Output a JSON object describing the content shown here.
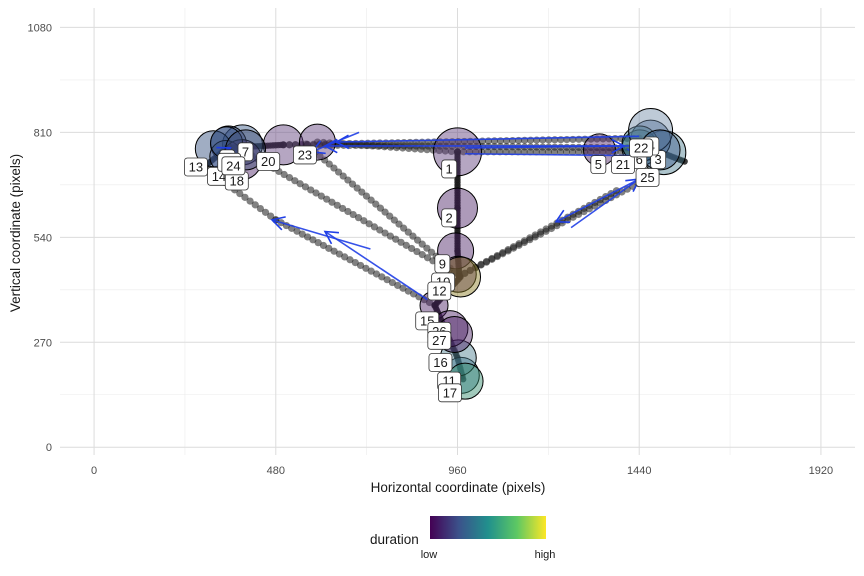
{
  "chart_data": {
    "type": "scatter",
    "xlabel": "Horizontal coordinate (pixels)",
    "ylabel": "Vertical coordinate (pixels)",
    "x_ticks": [
      "0",
      "480",
      "960",
      "1440",
      "1920"
    ],
    "y_ticks": [
      "0",
      "270",
      "540",
      "810",
      "1080"
    ],
    "xlim": [
      -90,
      2010
    ],
    "ylim": [
      -20,
      1130
    ],
    "grid": true,
    "legend": {
      "title": "duration",
      "low_label": "low",
      "high_label": "high",
      "gradient": [
        "#440154",
        "#3b528b",
        "#21908d",
        "#5dc863",
        "#fde725"
      ],
      "position": "bottom"
    },
    "fixations": [
      {
        "id": 1,
        "x": 960,
        "y": 760,
        "size": 24,
        "fill": "#5a3a78"
      },
      {
        "id": 2,
        "x": 960,
        "y": 615,
        "size": 20,
        "fill": "#4a1e63"
      },
      {
        "id": 3,
        "x": 1505,
        "y": 758,
        "size": 22,
        "fill": "#4a7d8e"
      },
      {
        "id": 4,
        "x": 1470,
        "y": 790,
        "size": 20,
        "fill": "#3a5a8a"
      },
      {
        "id": 5,
        "x": 1335,
        "y": 765,
        "size": 16,
        "fill": "#4a1e63"
      },
      {
        "id": 6,
        "x": 1442,
        "y": 770,
        "size": 18,
        "fill": "#2d6b7a"
      },
      {
        "id": 7,
        "x": 392,
        "y": 778,
        "size": 20,
        "fill": "#3a5a8a"
      },
      {
        "id": 8,
        "x": 355,
        "y": 780,
        "size": 18,
        "fill": "#3b528b"
      },
      {
        "id": 9,
        "x": 955,
        "y": 505,
        "size": 18,
        "fill": "#4a1e63"
      },
      {
        "id": 10,
        "x": 962,
        "y": 445,
        "size": 18,
        "fill": "#4a1e63"
      },
      {
        "id": 11,
        "x": 970,
        "y": 185,
        "size": 18,
        "fill": "#3b7890"
      },
      {
        "id": 12,
        "x": 968,
        "y": 438,
        "size": 20,
        "fill": "#8a7a20"
      },
      {
        "id": 13,
        "x": 315,
        "y": 768,
        "size": 18,
        "fill": "#2d4a7a"
      },
      {
        "id": 14,
        "x": 348,
        "y": 748,
        "size": 16,
        "fill": "#3b528b"
      },
      {
        "id": 15,
        "x": 898,
        "y": 365,
        "size": 14,
        "fill": "#4a1e63"
      },
      {
        "id": 16,
        "x": 962,
        "y": 230,
        "size": 18,
        "fill": "#4a7d8e"
      },
      {
        "id": 17,
        "x": 980,
        "y": 170,
        "size": 18,
        "fill": "#2f8a6a"
      },
      {
        "id": 18,
        "x": 390,
        "y": 740,
        "size": 20,
        "fill": "#4a1e63"
      },
      {
        "id": 19,
        "x": 350,
        "y": 783,
        "size": 16,
        "fill": "#2d4a7a"
      },
      {
        "id": 20,
        "x": 500,
        "y": 778,
        "size": 20,
        "fill": "#5a3a78"
      },
      {
        "id": 21,
        "x": 1442,
        "y": 780,
        "size": 18,
        "fill": "#2d6b7a"
      },
      {
        "id": 22,
        "x": 1470,
        "y": 815,
        "size": 22,
        "fill": "#6e8aa6"
      },
      {
        "id": 23,
        "x": 590,
        "y": 785,
        "size": 18,
        "fill": "#5a3a78"
      },
      {
        "id": 24,
        "x": 400,
        "y": 765,
        "size": 20,
        "fill": "#3a4a70"
      },
      {
        "id": 25,
        "x": 1495,
        "y": 765,
        "size": 20,
        "fill": "#3a5a8a"
      },
      {
        "id": 26,
        "x": 940,
        "y": 305,
        "size": 18,
        "fill": "#4a1e63"
      },
      {
        "id": 27,
        "x": 952,
        "y": 290,
        "size": 18,
        "fill": "#4a1e63"
      }
    ],
    "label_positions": [
      {
        "id": 1,
        "x": 938,
        "y": 716
      },
      {
        "id": 2,
        "x": 938,
        "y": 590
      },
      {
        "id": 3,
        "x": 1490,
        "y": 740
      },
      {
        "id": 4,
        "x": 1472,
        "y": 775
      },
      {
        "id": 5,
        "x": 1332,
        "y": 727
      },
      {
        "id": 6,
        "x": 1440,
        "y": 740
      },
      {
        "id": 7,
        "x": 400,
        "y": 760
      },
      {
        "id": 8,
        "x": 352,
        "y": 742
      },
      {
        "id": 9,
        "x": 920,
        "y": 472
      },
      {
        "id": 10,
        "x": 922,
        "y": 425
      },
      {
        "id": 11,
        "x": 938,
        "y": 170
      },
      {
        "id": 12,
        "x": 912,
        "y": 402
      },
      {
        "id": 13,
        "x": 269,
        "y": 721
      },
      {
        "id": 14,
        "x": 330,
        "y": 697
      },
      {
        "id": 15,
        "x": 880,
        "y": 325
      },
      {
        "id": 16,
        "x": 915,
        "y": 218
      },
      {
        "id": 17,
        "x": 940,
        "y": 140
      },
      {
        "id": 18,
        "x": 377,
        "y": 685
      },
      {
        "id": 19,
        "x": 357,
        "y": 733
      },
      {
        "id": 20,
        "x": 460,
        "y": 735
      },
      {
        "id": 21,
        "x": 1397,
        "y": 727
      },
      {
        "id": 22,
        "x": 1445,
        "y": 770
      },
      {
        "id": 23,
        "x": 557,
        "y": 752
      },
      {
        "id": 24,
        "x": 368,
        "y": 724
      },
      {
        "id": 25,
        "x": 1462,
        "y": 694
      },
      {
        "id": 26,
        "x": 912,
        "y": 298
      },
      {
        "id": 27,
        "x": 912,
        "y": 275
      }
    ],
    "path_segments": [
      {
        "from": [
          960,
          760
        ],
        "to": [
          960,
          615
        ],
        "dense": true
      },
      {
        "from": [
          960,
          615
        ],
        "to": [
          960,
          505
        ],
        "dense": true
      },
      {
        "from": [
          960,
          505
        ],
        "to": [
          965,
          440
        ],
        "dense": true
      },
      {
        "from": [
          965,
          440
        ],
        "to": [
          1480,
          700
        ],
        "dense": false
      },
      {
        "from": [
          965,
          440
        ],
        "to": [
          1380,
          660
        ],
        "dense": false
      },
      {
        "from": [
          968,
          438
        ],
        "to": [
          900,
          365
        ],
        "dense": true
      },
      {
        "from": [
          900,
          365
        ],
        "to": [
          960,
          230
        ],
        "dense": true
      },
      {
        "from": [
          960,
          230
        ],
        "to": [
          975,
          175
        ],
        "dense": true
      },
      {
        "from": [
          965,
          440
        ],
        "to": [
          390,
          765
        ],
        "dense": false
      },
      {
        "from": [
          965,
          440
        ],
        "to": [
          560,
          780
        ],
        "dense": false
      },
      {
        "from": [
          900,
          365
        ],
        "to": [
          480,
          585
        ],
        "dense": false
      },
      {
        "from": [
          480,
          585
        ],
        "to": [
          290,
          720
        ],
        "dense": false
      },
      {
        "from": [
          290,
          720
        ],
        "to": [
          350,
          770
        ],
        "dense": true
      },
      {
        "from": [
          350,
          770
        ],
        "to": [
          500,
          778
        ],
        "dense": true
      },
      {
        "from": [
          500,
          778
        ],
        "to": [
          1440,
          795
        ],
        "dense": false
      },
      {
        "from": [
          500,
          778
        ],
        "to": [
          1440,
          770
        ],
        "dense": false
      },
      {
        "from": [
          1440,
          780
        ],
        "to": [
          1560,
          735
        ],
        "dense": true
      },
      {
        "from": [
          590,
          785
        ],
        "to": [
          960,
          760
        ],
        "dense": false
      },
      {
        "from": [
          960,
          760
        ],
        "to": [
          1440,
          760
        ],
        "dense": false
      }
    ],
    "arrows": [
      {
        "from": [
          700,
          810
        ],
        "to": [
          575,
          760
        ]
      },
      {
        "from": [
          1440,
          800
        ],
        "to": [
          640,
          785
        ]
      },
      {
        "from": [
          1430,
          775
        ],
        "to": [
          610,
          775
        ]
      },
      {
        "from": [
          980,
          770
        ],
        "to": [
          1400,
          775
        ]
      },
      {
        "from": [
          980,
          755
        ],
        "to": [
          1440,
          750
        ]
      },
      {
        "from": [
          1460,
          700
        ],
        "to": [
          1220,
          580
        ]
      },
      {
        "from": [
          1260,
          565
        ],
        "to": [
          1440,
          690
        ]
      },
      {
        "from": [
          880,
          380
        ],
        "to": [
          610,
          555
        ]
      },
      {
        "from": [
          730,
          510
        ],
        "to": [
          470,
          585
        ]
      },
      {
        "from": [
          340,
          760
        ],
        "to": [
          360,
          770
        ]
      }
    ]
  }
}
